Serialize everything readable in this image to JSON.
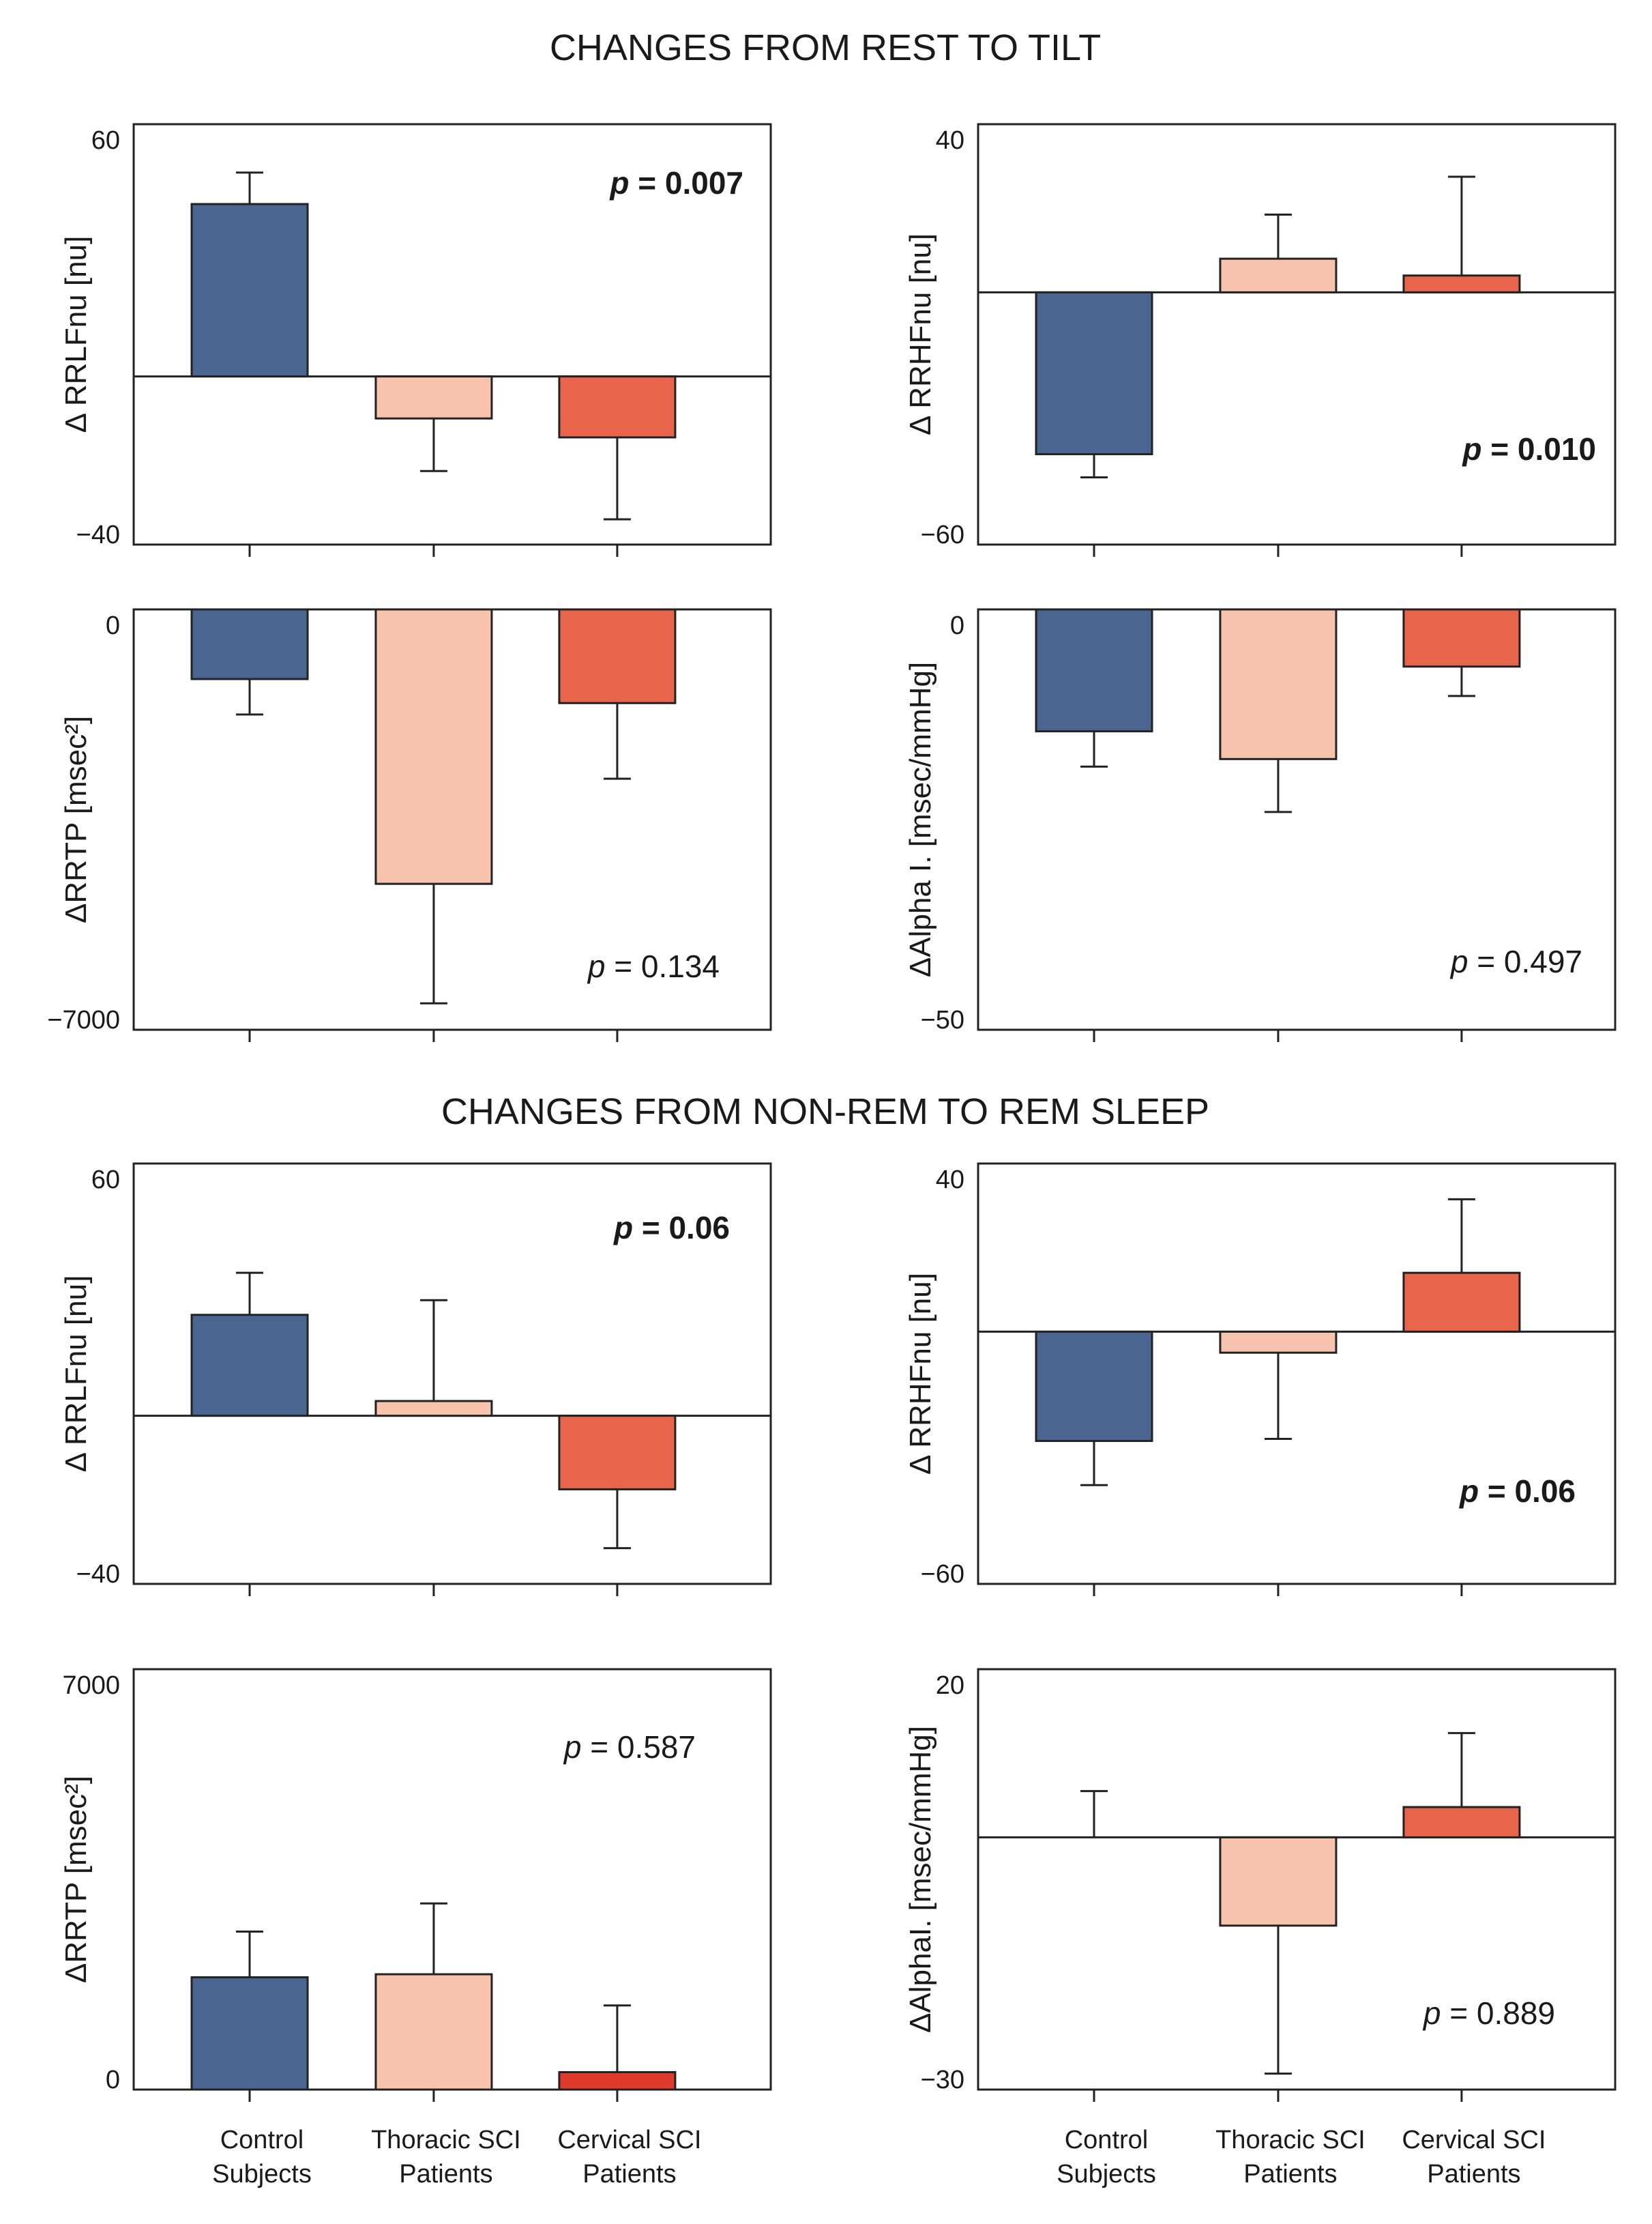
{
  "figure": {
    "section_titles": [
      "CHANGES FROM REST TO TILT",
      "CHANGES FROM NON-REM TO REM SLEEP"
    ],
    "colors": {
      "control": "#4a6690",
      "thoracic": "#f8c3ad",
      "cervical": "#e8644a",
      "cervical_alt": "#e03a2c",
      "axis": "#222222"
    }
  },
  "chart_data": [
    {
      "id": "tilt-rrlfnu",
      "section": "CHANGES FROM REST TO TILT",
      "type": "bar",
      "title": "",
      "ylabel": "Δ RRLFnu [nu]",
      "xlabel": "",
      "ylim": [
        -40,
        60
      ],
      "tick_labels": [
        "60",
        "−40"
      ],
      "categories": [
        "Control Subjects",
        "Thoracic SCI Patients",
        "Cervical SCI Patients"
      ],
      "values": [
        41,
        -10,
        -14.5
      ],
      "errors": [
        7.5,
        12.5,
        19.5
      ],
      "baseline_line": true,
      "p_label": "p =",
      "p_value": "0.007",
      "p_bold": true
    },
    {
      "id": "tilt-rrhfnu",
      "section": "CHANGES FROM REST TO TILT",
      "type": "bar",
      "title": "",
      "ylabel": "Δ RRHFnu [nu]",
      "xlabel": "",
      "ylim": [
        -60,
        40
      ],
      "tick_labels": [
        "40",
        "−60"
      ],
      "categories": [
        "Control Subjects",
        "Thoracic SCI Patients",
        "Cervical SCI Patients"
      ],
      "values": [
        -38.5,
        8,
        4
      ],
      "errors": [
        5.5,
        10.5,
        23.5
      ],
      "baseline_line": true,
      "p_label": "p =",
      "p_value": "0.010",
      "p_bold": true
    },
    {
      "id": "tilt-rrtp",
      "section": "CHANGES FROM REST TO TILT",
      "type": "bar",
      "title": "",
      "ylabel": "ΔRRTP [msec²]",
      "xlabel": "",
      "ylim": [
        -7000,
        0
      ],
      "tick_labels": [
        "0",
        "−7000"
      ],
      "categories": [
        "Control Subjects",
        "Thoracic SCI Patients",
        "Cervical SCI Patients"
      ],
      "values": [
        -1160,
        -4570,
        -1560
      ],
      "errors": [
        590,
        1990,
        1260
      ],
      "baseline_line": false,
      "p_label": "p =",
      "p_value": "0.134",
      "p_bold": false
    },
    {
      "id": "tilt-alpha",
      "section": "CHANGES FROM REST TO TILT",
      "type": "bar",
      "title": "",
      "ylabel": "ΔAlpha I. [msec/mmHg]",
      "xlabel": "",
      "ylim": [
        -50,
        0
      ],
      "tick_labels": [
        "0",
        "−50"
      ],
      "categories": [
        "Control Subjects",
        "Thoracic SCI Patients",
        "Cervical SCI Patients"
      ],
      "values": [
        -14.5,
        -17.8,
        -6.8
      ],
      "errors": [
        4.2,
        6.3,
        3.5
      ],
      "baseline_line": false,
      "p_label": "p =",
      "p_value": "0.497",
      "p_bold": false
    },
    {
      "id": "sleep-rrlfnu",
      "section": "CHANGES FROM NON-REM TO REM SLEEP",
      "type": "bar",
      "title": "",
      "ylabel": "Δ RRLFnu [nu]",
      "xlabel": "",
      "ylim": [
        -40,
        60
      ],
      "tick_labels": [
        "60",
        "−40"
      ],
      "categories": [
        "Control Subjects",
        "Thoracic SCI Patients",
        "Cervical SCI Patients"
      ],
      "values": [
        24,
        3.5,
        -17.5
      ],
      "errors": [
        10,
        24,
        14
      ],
      "baseline_line": true,
      "p_label": "p =",
      "p_value": "0.06",
      "p_bold": true
    },
    {
      "id": "sleep-rrhfnu",
      "section": "CHANGES FROM NON-REM TO REM SLEEP",
      "type": "bar",
      "title": "",
      "ylabel": "Δ RRHFnu [nu]",
      "xlabel": "",
      "ylim": [
        -60,
        40
      ],
      "tick_labels": [
        "40",
        "−60"
      ],
      "categories": [
        "Control Subjects",
        "Thoracic SCI Patients",
        "Cervical SCI Patients"
      ],
      "values": [
        -26,
        -5,
        14
      ],
      "errors": [
        10.5,
        20.5,
        17.5
      ],
      "baseline_line": true,
      "p_label": "p =",
      "p_value": "0.06",
      "p_bold": true
    },
    {
      "id": "sleep-rrtp",
      "section": "CHANGES FROM NON-REM TO REM SLEEP",
      "type": "bar",
      "title": "",
      "ylabel": "ΔRRTP [msec²]",
      "xlabel": "",
      "ylim": [
        0,
        7000
      ],
      "tick_labels": [
        "7000",
        "0"
      ],
      "categories": [
        "Control Subjects",
        "Thoracic SCI Patients",
        "Cervical SCI Patients"
      ],
      "values": [
        1870,
        1920,
        290
      ],
      "errors": [
        760,
        1180,
        1110
      ],
      "baseline_line": false,
      "p_label": "p =",
      "p_value": "0.587",
      "p_bold": false
    },
    {
      "id": "sleep-alpha",
      "section": "CHANGES FROM NON-REM TO REM SLEEP",
      "type": "bar",
      "title": "",
      "ylabel": "ΔAlphaI. [msec/mmHg]",
      "xlabel": "",
      "ylim": [
        -30,
        20
      ],
      "tick_labels": [
        "20",
        "−30"
      ],
      "categories": [
        "Control Subjects",
        "Thoracic SCI Patients",
        "Cervical SCI Patients"
      ],
      "values": [
        0,
        -10.5,
        3.6
      ],
      "errors": [
        5.5,
        17.6,
        8.8
      ],
      "baseline_line": true,
      "p_label": "p =",
      "p_value": "0.889",
      "p_bold": false
    }
  ],
  "x_category_lines": [
    [
      "Control",
      "Subjects"
    ],
    [
      "Thoracic SCI",
      "Patients"
    ],
    [
      "Cervical SCI",
      "Patients"
    ]
  ]
}
